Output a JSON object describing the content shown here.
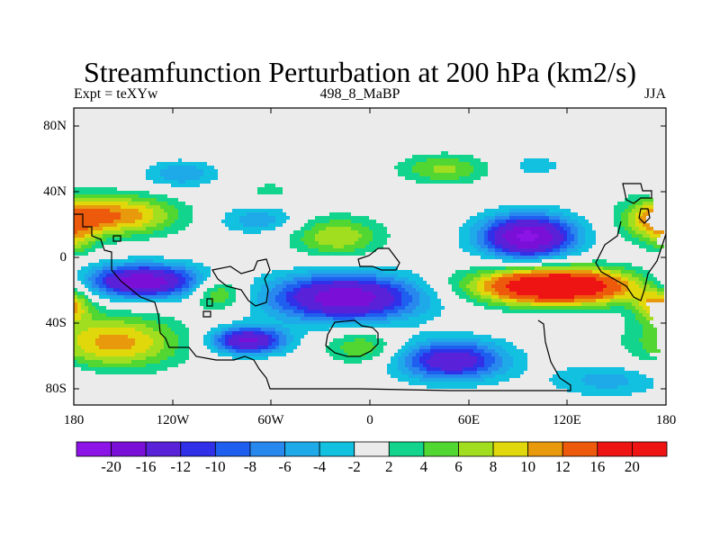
{
  "title": "Streamfunction Perturbation at 200 hPa (km2/s)",
  "subtitle_left": "Expt = teXYw",
  "subtitle_center": "498_8_MaBP",
  "subtitle_right": "JJA",
  "y_ticks": [
    "80N",
    "40N",
    "0",
    "40S",
    "80S"
  ],
  "x_ticks": [
    "180",
    "120W",
    "60W",
    "0",
    "60E",
    "120E",
    "180"
  ],
  "colorbar": {
    "labels": [
      "-20",
      "-16",
      "-12",
      "-10",
      "-8",
      "-6",
      "-4",
      "-2",
      "2",
      "4",
      "6",
      "8",
      "10",
      "12",
      "16",
      "20"
    ],
    "colors": [
      "#8c14e6",
      "#7a10d8",
      "#5a22d8",
      "#3030e8",
      "#1f5ff0",
      "#2888ee",
      "#1eaae8",
      "#12c0e0",
      "#ebebeb",
      "#12d48c",
      "#52d632",
      "#a2de20",
      "#e0d80a",
      "#e89a0c",
      "#ee5a0c",
      "#ee1414"
    ]
  },
  "chart_data": {
    "type": "heatmap",
    "title": "Streamfunction Perturbation at 200 hPa (km2/s)",
    "x_range": [
      -180,
      180
    ],
    "y_range": [
      -90,
      90
    ],
    "units": "km2/s",
    "levels": [
      -20,
      -16,
      -12,
      -10,
      -8,
      -6,
      -4,
      -2,
      2,
      4,
      6,
      8,
      10,
      12,
      16,
      20
    ],
    "blobs": [
      {
        "lon": 113,
        "lat": -18,
        "rlon": 48,
        "rlat": 11,
        "amp": 24
      },
      {
        "lon": 96,
        "lat": 12,
        "rlon": 28,
        "rlat": 13,
        "amp": -21
      },
      {
        "lon": -15,
        "lat": -25,
        "rlon": 45,
        "rlat": 14,
        "amp": -19
      },
      {
        "lon": -138,
        "lat": -15,
        "rlon": 35,
        "rlat": 10,
        "amp": -19
      },
      {
        "lon": -74,
        "lat": -51,
        "rlon": 22,
        "rlat": 8,
        "amp": -17
      },
      {
        "lon": 50,
        "lat": -63,
        "rlon": 32,
        "rlat": 12,
        "amp": -15
      },
      {
        "lon": -150,
        "lat": 25,
        "rlon": 34,
        "rlat": 12,
        "amp": 11
      },
      {
        "lon": 176,
        "lat": 22,
        "rlon": 22,
        "rlat": 13,
        "amp": 11
      },
      {
        "lon": 176,
        "lat": -30,
        "rlon": 14,
        "rlat": 10,
        "amp": 10
      },
      {
        "lon": -155,
        "lat": -52,
        "rlon": 40,
        "rlat": 16,
        "amp": 11
      },
      {
        "lon": -92,
        "lat": -22,
        "rlon": 16,
        "rlat": 10,
        "amp": 8
      },
      {
        "lon": -20,
        "lat": 12,
        "rlon": 27,
        "rlat": 12,
        "amp": 8
      },
      {
        "lon": 45,
        "lat": 53,
        "rlon": 27,
        "rlat": 9,
        "amp": 6.5
      },
      {
        "lon": -115,
        "lat": 50,
        "rlon": 22,
        "rlat": 8,
        "amp": -6
      },
      {
        "lon": -68,
        "lat": 22,
        "rlon": 24,
        "rlat": 8,
        "amp": -5.5
      },
      {
        "lon": -60,
        "lat": 40,
        "rlon": 10,
        "rlat": 4,
        "amp": 4
      },
      {
        "lon": -5,
        "lat": -55,
        "rlon": 22,
        "rlat": 10,
        "amp": 6
      },
      {
        "lon": 145,
        "lat": -75,
        "rlon": 35,
        "rlat": 10,
        "amp": -5
      },
      {
        "lon": -178,
        "lat": 8,
        "rlon": 10,
        "rlat": 8,
        "amp": 4
      },
      {
        "lon": 100,
        "lat": 55,
        "rlon": 20,
        "rlat": 8,
        "amp": -3
      }
    ]
  }
}
